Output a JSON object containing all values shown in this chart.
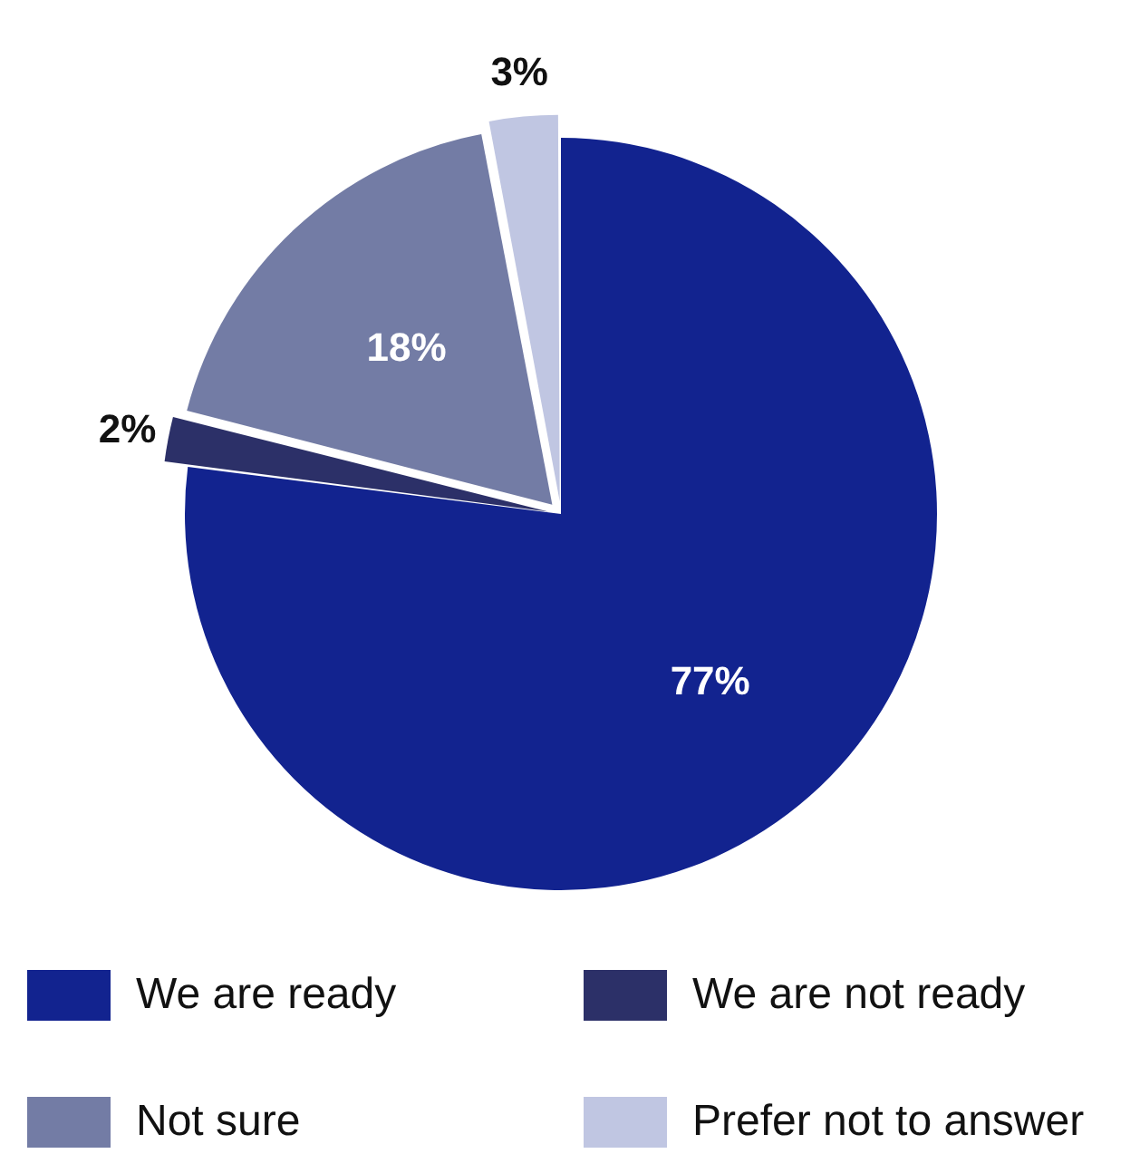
{
  "chart_data": {
    "type": "pie",
    "categories": [
      "We are ready",
      "We are not ready",
      "Not sure",
      "Prefer not to answer"
    ],
    "values": [
      77,
      2,
      18,
      3
    ],
    "colors": [
      "#12238f",
      "#2c3068",
      "#737ca5",
      "#c0c6e2"
    ],
    "value_labels": [
      "77%",
      "2%",
      "18%",
      "3%"
    ],
    "legend": "bottom"
  }
}
